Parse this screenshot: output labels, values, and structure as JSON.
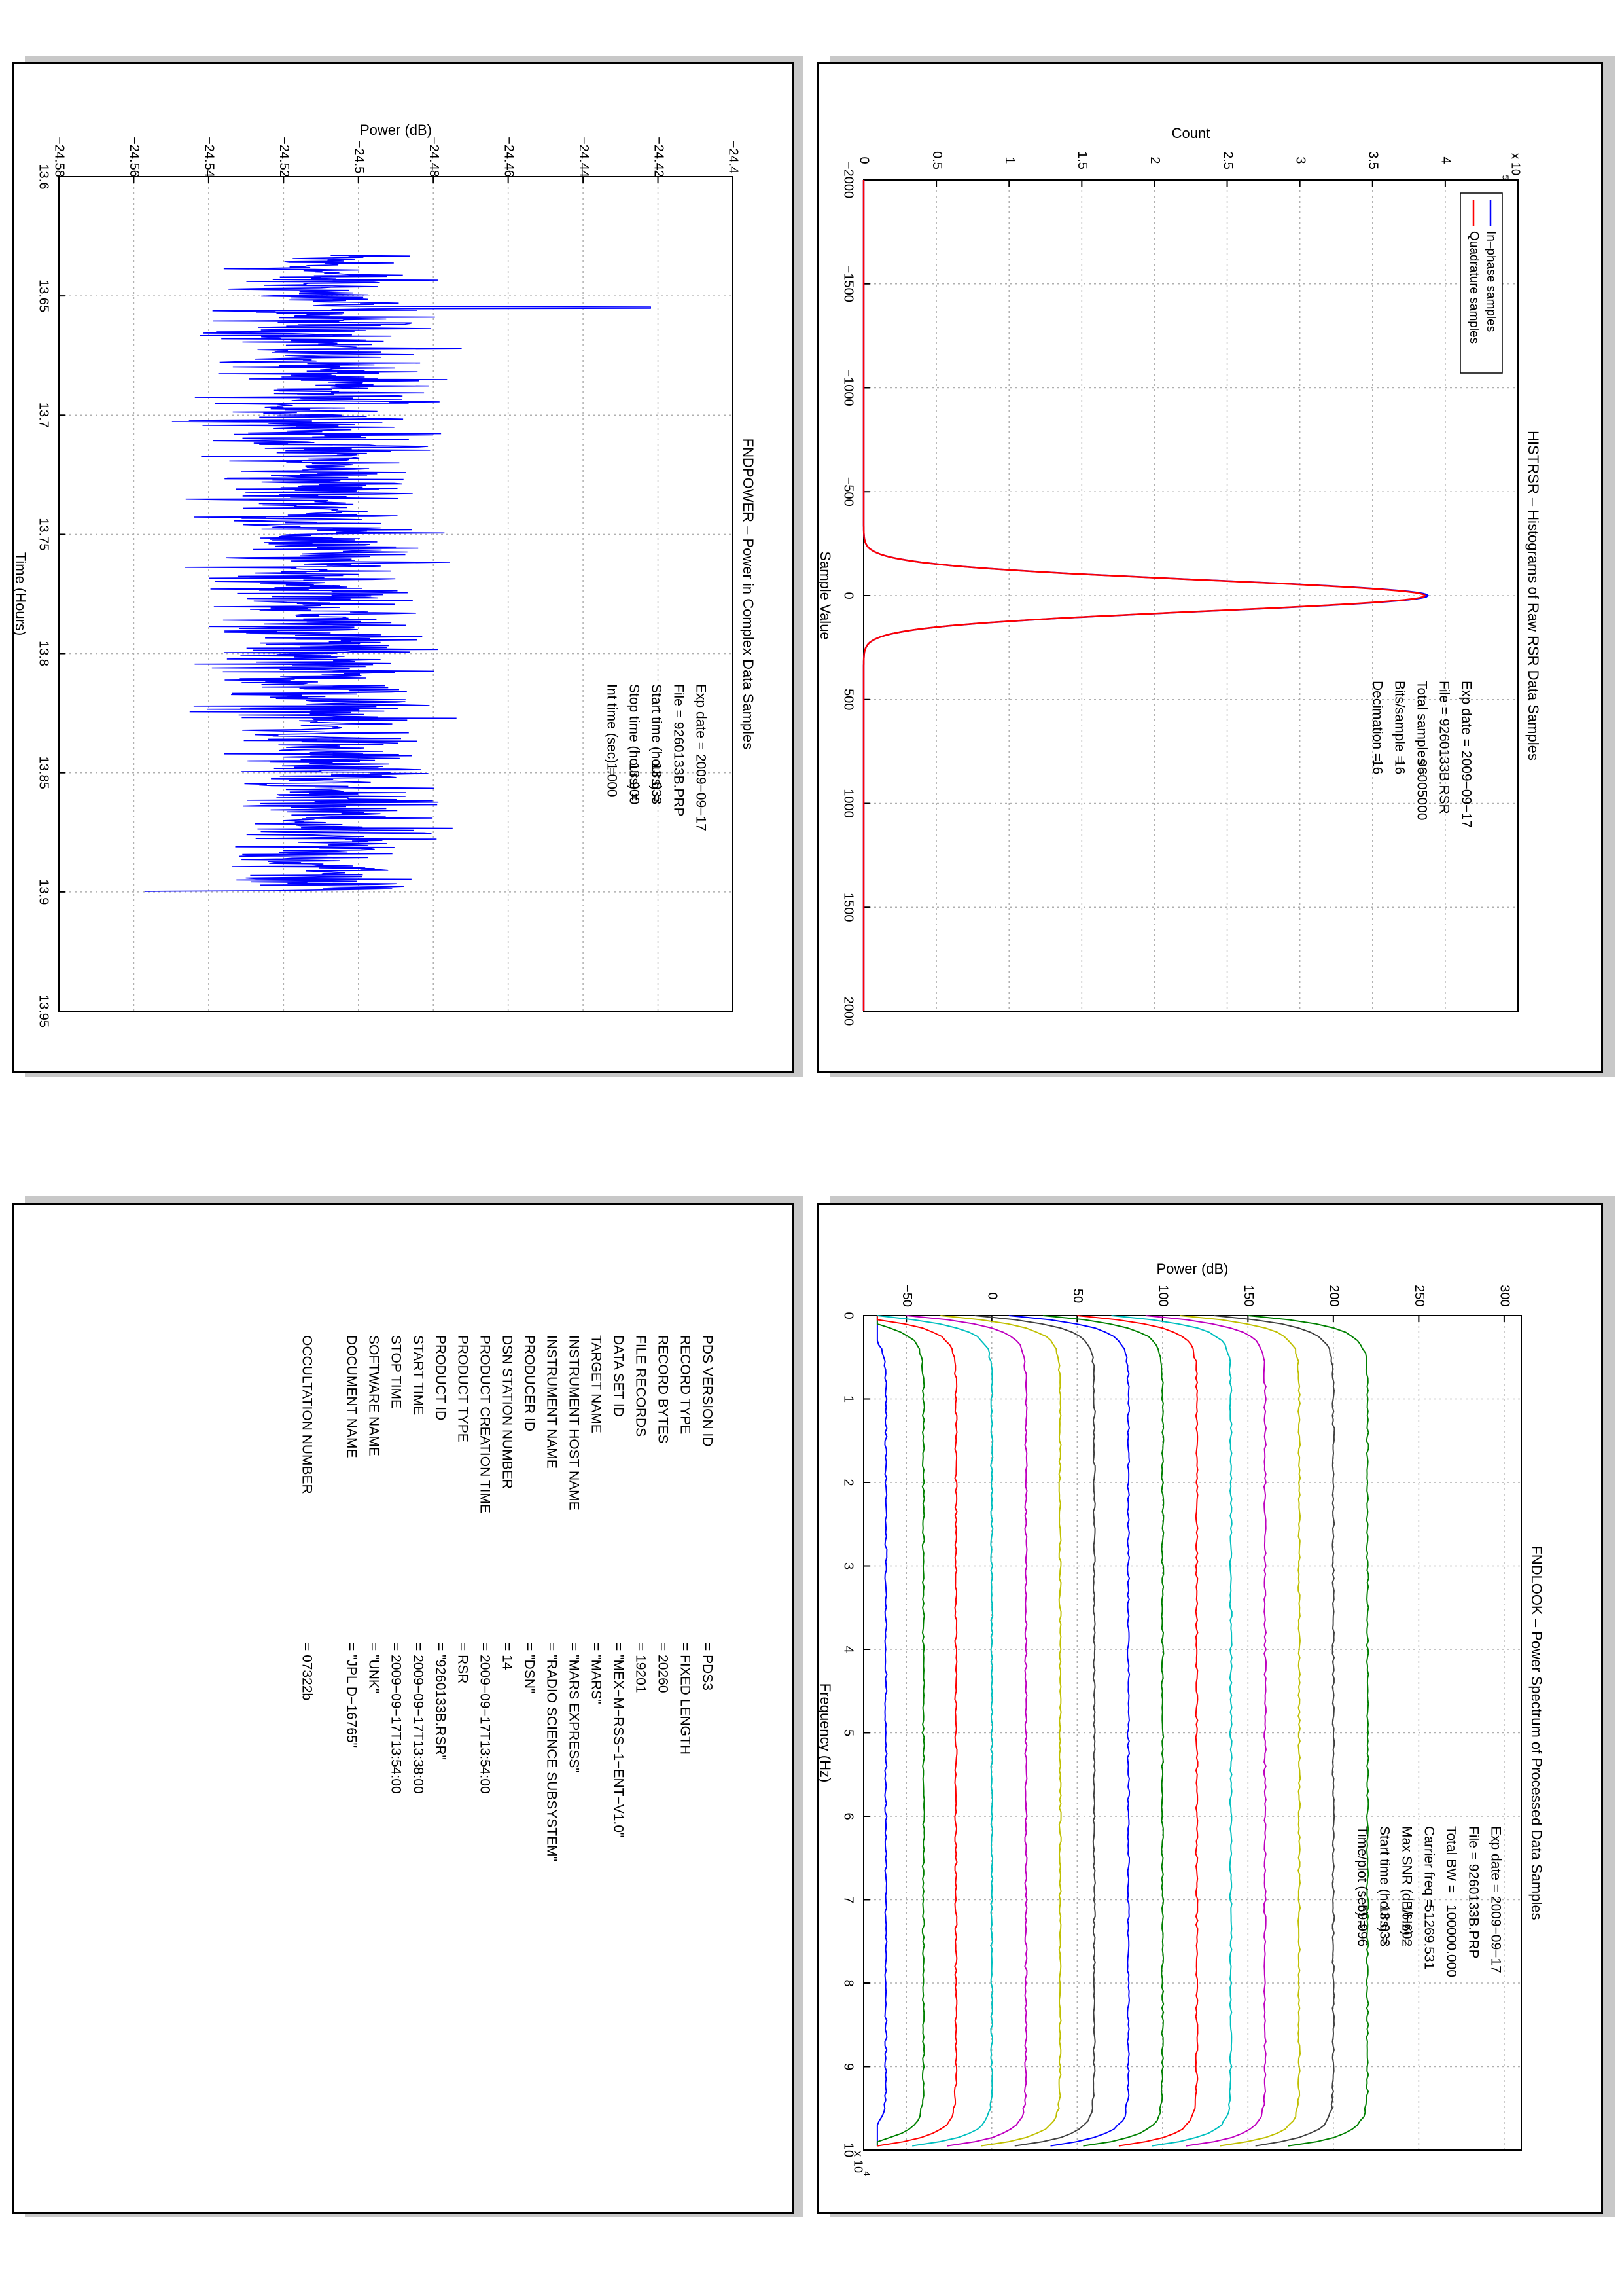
{
  "panels": {
    "histrsr": {
      "chart_data": {
        "type": "line",
        "title": "HISTRSR – Histograms of Raw RSR Data Samples",
        "xlabel": "Sample Value",
        "ylabel": "Count",
        "xlim": [
          -2000,
          2000
        ],
        "ylim": [
          0,
          4.5
        ],
        "y_scale_note": "x 10^5",
        "grid": true,
        "legend_placement": "top-left",
        "xticks": [
          -2000,
          -1500,
          -1000,
          -500,
          0,
          500,
          1000,
          1500,
          2000
        ],
        "xtick_labels": [
          "−2000",
          "−1500",
          "−1000",
          "−500",
          "0",
          "500",
          "1000",
          "1500",
          "2000"
        ],
        "yticks": [
          0,
          0.5,
          1,
          1.5,
          2,
          2.5,
          3,
          3.5,
          4
        ],
        "ytick_labels": [
          "0",
          "0.5",
          "1",
          "1.5",
          "2",
          "2.5",
          "3",
          "3.5",
          "4"
        ],
        "series": [
          {
            "name": "In–phase samples",
            "color": "#0000ff",
            "shape": "gaussian",
            "peak": 3.88,
            "center": 0,
            "sigma": 75
          },
          {
            "name": "Quadrature samples",
            "color": "#ff0000",
            "shape": "gaussian",
            "peak": 3.86,
            "center": 0,
            "sigma": 75
          }
        ],
        "annotations": [
          {
            "label": "Exp date = 2009−09−17",
            "value": ""
          },
          {
            "label": "File = 9260133B.RSR",
            "value": ""
          },
          {
            "label": "Total samples =",
            "value": "96005000"
          },
          {
            "label": "Bits/sample    =",
            "value": "16"
          },
          {
            "label": "Decimation     =",
            "value": "16"
          }
        ]
      }
    },
    "fndpower": {
      "chart_data": {
        "type": "line",
        "title": "FNDPOWER – Power in Complex Data Samples",
        "xlabel": "Time (Hours)",
        "ylabel": "Power (dB)",
        "xlim": [
          13.6,
          13.95
        ],
        "ylim": [
          -24.58,
          -24.4
        ],
        "grid": true,
        "xticks": [
          13.6,
          13.65,
          13.7,
          13.75,
          13.8,
          13.85,
          13.9,
          13.95
        ],
        "xtick_labels": [
          "13.6",
          "13.65",
          "13.7",
          "13.75",
          "13.8",
          "13.85",
          "13.9",
          "13.95"
        ],
        "yticks": [
          -24.58,
          -24.56,
          -24.54,
          -24.52,
          -24.5,
          -24.48,
          -24.46,
          -24.44,
          -24.42,
          -24.4
        ],
        "ytick_labels": [
          "−24.58",
          "−24.56",
          "−24.54",
          "−24.52",
          "−24.5",
          "−24.48",
          "−24.46",
          "−24.44",
          "−24.42",
          "−24.4"
        ],
        "series": [
          {
            "color": "#0000ff",
            "x_range": [
              13.633,
              13.9
            ],
            "mean": -24.51,
            "noise_range": [
              -24.557,
              -24.422
            ],
            "peak_at": 13.655,
            "peak_value": -24.422,
            "min_at": 13.9,
            "min_value": -24.557
          }
        ],
        "annotations": [
          {
            "label": "Exp date = 2009−09−17",
            "value": ""
          },
          {
            "label": "File = 9260133B.PRP",
            "value": ""
          },
          {
            "label": "Start time (hours) =",
            "value": "13.633"
          },
          {
            "label": "Stop time (hours)  =",
            "value": "13.900"
          },
          {
            "label": "Int time (sec) =",
            "value": "1.000"
          }
        ]
      }
    },
    "fndlook": {
      "chart_data": {
        "type": "line",
        "title": "FNDLOOK – Power Spectrum of Processed Data Samples",
        "xlabel": "Frequency (Hz)",
        "ylabel": "Power (dB)",
        "x_scale_note": "x 10^4",
        "xlim": [
          0,
          10
        ],
        "ylim": [
          -75,
          310
        ],
        "grid": true,
        "xticks": [
          0,
          1,
          2,
          3,
          4,
          5,
          6,
          7,
          8,
          9,
          10
        ],
        "xtick_labels": [
          "0",
          "1",
          "2",
          "3",
          "4",
          "5",
          "6",
          "7",
          "8",
          "9",
          "10"
        ],
        "yticks": [
          -50,
          0,
          50,
          100,
          150,
          200,
          250,
          300
        ],
        "ytick_labels": [
          "−50",
          "0",
          "50",
          "100",
          "150",
          "200",
          "250",
          "300"
        ],
        "series": [
          {
            "color": "#0000ff",
            "level": -62
          },
          {
            "color": "#008000",
            "level": -40
          },
          {
            "color": "#ff0000",
            "level": -21
          },
          {
            "color": "#00bfbf",
            "level": 0
          },
          {
            "color": "#bf00bf",
            "level": 20
          },
          {
            "color": "#bfbf00",
            "level": 40
          },
          {
            "color": "#404040",
            "level": 60
          },
          {
            "color": "#0000ff",
            "level": 80
          },
          {
            "color": "#008000",
            "level": 100
          },
          {
            "color": "#ff0000",
            "level": 120
          },
          {
            "color": "#00bfbf",
            "level": 140
          },
          {
            "color": "#bf00bf",
            "level": 160
          },
          {
            "color": "#bfbf00",
            "level": 180
          },
          {
            "color": "#404040",
            "level": 200
          },
          {
            "color": "#008000",
            "level": 220
          }
        ],
        "annotations": [
          {
            "label": "Exp date = 2009−09−17",
            "value": ""
          },
          {
            "label": "File = 9260133B.PRP",
            "value": ""
          },
          {
            "label": "Total BW =",
            "value": "100000.000"
          },
          {
            "label": "Carrier freq =",
            "value": "51269.531"
          },
          {
            "label": "Max SNR (dB/Hz) =",
            "value": "16.602"
          },
          {
            "label": "Start time (hours) =",
            "value": "13.633"
          },
          {
            "label": "Time/plot (sec) =",
            "value": "59.996"
          }
        ]
      }
    },
    "label": {
      "rows": [
        {
          "key": "PDS VERSION ID",
          "value": "= PDS3"
        },
        {
          "key": "RECORD TYPE",
          "value": "= FIXED LENGTH"
        },
        {
          "key": "RECORD BYTES",
          "value": "= 20260"
        },
        {
          "key": "FILE RECORDS",
          "value": "= 19201"
        },
        {
          "key": "DATA SET ID",
          "value": "= \"MEX−M−RSS−1−ENT−V1.0\""
        },
        {
          "key": "TARGET NAME",
          "value": "= \"MARS\""
        },
        {
          "key": "INSTRUMENT HOST NAME",
          "value": "= \"MARS EXPRESS\""
        },
        {
          "key": "INSTRUMENT NAME",
          "value": "= \"RADIO SCIENCE SUBSYSTEM\""
        },
        {
          "key": "PRODUCER ID",
          "value": "= \"DSN\""
        },
        {
          "key": "DSN STATION NUMBER",
          "value": "= 14"
        },
        {
          "key": "PRODUCT CREATION TIME",
          "value": "= 2009−09−17T13:54:00"
        },
        {
          "key": "PRODUCT TYPE",
          "value": "= RSR"
        },
        {
          "key": "PRODUCT ID",
          "value": "= \"9260133B.RSR\""
        },
        {
          "key": "START TIME",
          "value": "= 2009−09−17T13:38:00"
        },
        {
          "key": "STOP TIME",
          "value": "= 2009−09−17T13:54:00"
        },
        {
          "key": "SOFTWARE NAME",
          "value": "= \"UNK\""
        },
        {
          "key": "DOCUMENT NAME",
          "value": "= \"JPL D−16765\""
        },
        {
          "key": "",
          "value": ""
        },
        {
          "key": "OCCULTATION NUMBER",
          "value": "= 07322b"
        }
      ]
    }
  }
}
